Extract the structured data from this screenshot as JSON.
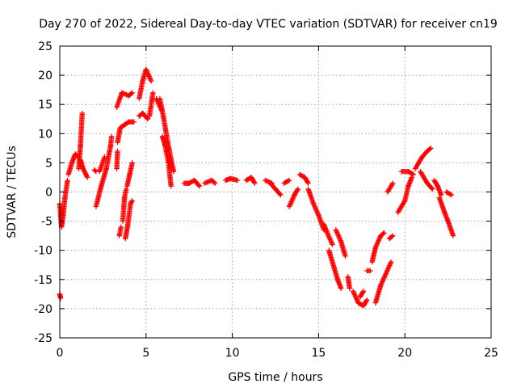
{
  "chart_data": {
    "type": "scatter",
    "title": "Day 270 of 2022, Sidereal Day-to-day VTEC variation (SDTVAR) for receiver cn19",
    "xlabel": "GPS time / hours",
    "ylabel": "SDTVAR / TECUs",
    "xlim": [
      0,
      25
    ],
    "ylim": [
      -25,
      25
    ],
    "x_ticks": [
      "0",
      "5",
      "10",
      "15",
      "20",
      "25"
    ],
    "y_ticks": [
      "25",
      "20",
      "15",
      "10",
      "5",
      "0",
      "-5",
      "-10",
      "-15",
      "-20",
      "-25"
    ],
    "grid": true,
    "colors": {
      "series": "#ff0000",
      "grid": "#a0a0a0",
      "axis": "#000000"
    },
    "marker": "+",
    "series": [
      {
        "name": "SDTVAR",
        "segments": [
          [
            [
              0.0,
              -2.0
            ],
            [
              0.1,
              -6.0
            ],
            [
              0.2,
              -4.0
            ],
            [
              0.3,
              -1.0
            ],
            [
              0.45,
              2.0
            ]
          ],
          [
            [
              0.0,
              -17.5
            ],
            [
              0.05,
              -18.2
            ]
          ],
          [
            [
              0.5,
              3.0
            ],
            [
              0.7,
              5.0
            ],
            [
              0.9,
              6.5
            ],
            [
              1.05,
              6.0
            ]
          ],
          [
            [
              1.1,
              4.0
            ],
            [
              1.2,
              8.0
            ],
            [
              1.3,
              13.5
            ]
          ],
          [
            [
              1.2,
              5.5
            ],
            [
              1.35,
              4.0
            ],
            [
              1.6,
              2.5
            ]
          ],
          [
            [
              2.0,
              3.8
            ],
            [
              2.1,
              3.5
            ]
          ],
          [
            [
              2.1,
              -2.5
            ],
            [
              2.4,
              1.0
            ],
            [
              2.7,
              4.0
            ],
            [
              2.95,
              8.0
            ],
            [
              3.0,
              9.5
            ]
          ],
          [
            [
              2.3,
              3.5
            ],
            [
              2.6,
              6.0
            ]
          ],
          [
            [
              3.3,
              4.0
            ],
            [
              3.35,
              7.0
            ]
          ],
          [
            [
              3.35,
              8.5
            ],
            [
              3.5,
              11.0
            ],
            [
              4.0,
              12.0
            ],
            [
              4.3,
              12.0
            ]
          ],
          [
            [
              3.3,
              14.5
            ],
            [
              3.6,
              17.0
            ],
            [
              4.0,
              16.5
            ],
            [
              4.2,
              17.0
            ]
          ],
          [
            [
              3.45,
              -7.5
            ],
            [
              3.55,
              -6.0
            ]
          ],
          [
            [
              3.65,
              -5.0
            ],
            [
              3.75,
              -1.0
            ],
            [
              3.85,
              0.5
            ]
          ],
          [
            [
              3.8,
              -8.0
            ],
            [
              3.95,
              -5.5
            ],
            [
              4.1,
              -2.0
            ],
            [
              4.2,
              -1.5
            ]
          ],
          [
            [
              3.9,
              1.0
            ],
            [
              4.05,
              3.0
            ],
            [
              4.2,
              5.0
            ]
          ],
          [
            [
              4.6,
              13.0
            ],
            [
              4.8,
              13.5
            ],
            [
              5.1,
              12.5
            ]
          ],
          [
            [
              4.6,
              16.0
            ],
            [
              4.8,
              19.0
            ],
            [
              5.0,
              21.0
            ],
            [
              5.3,
              19.0
            ]
          ],
          [
            [
              5.2,
              13.0
            ],
            [
              5.4,
              17.0
            ]
          ],
          [
            [
              5.6,
              16.0
            ],
            [
              5.9,
              14.0
            ]
          ],
          [
            [
              5.8,
              16.0
            ],
            [
              6.0,
              13.0
            ],
            [
              6.2,
              9.5
            ],
            [
              6.45,
              5.5
            ],
            [
              6.6,
              3.5
            ]
          ],
          [
            [
              5.95,
              9.5
            ],
            [
              6.1,
              8.0
            ],
            [
              6.3,
              5.0
            ],
            [
              6.45,
              1.0
            ]
          ],
          [
            [
              7.2,
              1.5
            ],
            [
              7.5,
              1.5
            ],
            [
              7.8,
              2.0
            ],
            [
              8.1,
              1.0
            ]
          ],
          [
            [
              8.4,
              1.5
            ],
            [
              8.8,
              2.0
            ],
            [
              9.0,
              1.5
            ]
          ],
          [
            [
              9.6,
              2.0
            ],
            [
              9.9,
              2.3
            ],
            [
              10.3,
              2.0
            ]
          ],
          [
            [
              10.8,
              2.0
            ],
            [
              11.1,
              2.5
            ],
            [
              11.3,
              1.5
            ]
          ],
          [
            [
              11.9,
              2.0
            ],
            [
              12.3,
              1.5
            ]
          ],
          [
            [
              12.2,
              1.5
            ],
            [
              12.5,
              0.5
            ],
            [
              12.8,
              -0.5
            ]
          ],
          [
            [
              13.0,
              1.5
            ],
            [
              13.3,
              2.0
            ]
          ],
          [
            [
              13.3,
              -2.5
            ],
            [
              13.6,
              -0.5
            ],
            [
              13.8,
              0.5
            ]
          ],
          [
            [
              13.9,
              3.0
            ],
            [
              14.2,
              2.5
            ],
            [
              14.4,
              1.5
            ]
          ],
          [
            [
              14.4,
              0.5
            ],
            [
              14.7,
              -2.0
            ],
            [
              15.0,
              -4.0
            ],
            [
              15.3,
              -6.5
            ]
          ],
          [
            [
              15.3,
              -5.5
            ],
            [
              15.5,
              -7.0
            ],
            [
              15.8,
              -9.0
            ]
          ],
          [
            [
              15.6,
              -10.0
            ],
            [
              15.9,
              -13.0
            ],
            [
              16.1,
              -15.0
            ],
            [
              16.3,
              -16.5
            ]
          ],
          [
            [
              16.0,
              -6.5
            ],
            [
              16.3,
              -8.5
            ],
            [
              16.55,
              -11.0
            ]
          ],
          [
            [
              16.7,
              -14.5
            ],
            [
              16.8,
              -16.5
            ]
          ],
          [
            [
              17.0,
              -17.0
            ],
            [
              17.3,
              -19.0
            ],
            [
              17.6,
              -19.5
            ],
            [
              17.8,
              -18.5
            ]
          ],
          [
            [
              17.4,
              -18.0
            ],
            [
              17.6,
              -17.0
            ]
          ],
          [
            [
              17.8,
              -13.5
            ],
            [
              18.0,
              -13.5
            ]
          ],
          [
            [
              18.1,
              -12.0
            ],
            [
              18.3,
              -9.5
            ],
            [
              18.6,
              -7.5
            ],
            [
              18.8,
              -7.0
            ]
          ],
          [
            [
              18.3,
              -19.0
            ],
            [
              18.6,
              -16.0
            ],
            [
              18.9,
              -14.0
            ],
            [
              19.2,
              -12.0
            ]
          ],
          [
            [
              19.1,
              -8.0
            ],
            [
              19.3,
              -7.5
            ]
          ],
          [
            [
              19.0,
              0.0
            ],
            [
              19.3,
              1.5
            ]
          ],
          [
            [
              19.6,
              -3.5
            ],
            [
              20.0,
              -1.5
            ],
            [
              20.2,
              1.0
            ],
            [
              20.4,
              2.5
            ]
          ],
          [
            [
              19.8,
              3.5
            ],
            [
              20.2,
              3.5
            ],
            [
              20.5,
              3.0
            ]
          ],
          [
            [
              20.6,
              4.0
            ],
            [
              21.0,
              6.0
            ],
            [
              21.3,
              7.0
            ],
            [
              21.5,
              7.5
            ]
          ],
          [
            [
              20.9,
              3.5
            ],
            [
              21.3,
              1.5
            ],
            [
              21.6,
              0.5
            ]
          ],
          [
            [
              21.7,
              2.0
            ],
            [
              21.9,
              1.0
            ],
            [
              22.1,
              -0.5
            ]
          ],
          [
            [
              22.0,
              -1.0
            ],
            [
              22.3,
              -3.5
            ],
            [
              22.5,
              -5.0
            ],
            [
              22.8,
              -7.5
            ]
          ],
          [
            [
              22.4,
              0.0
            ],
            [
              22.7,
              -0.5
            ]
          ]
        ]
      }
    ]
  }
}
